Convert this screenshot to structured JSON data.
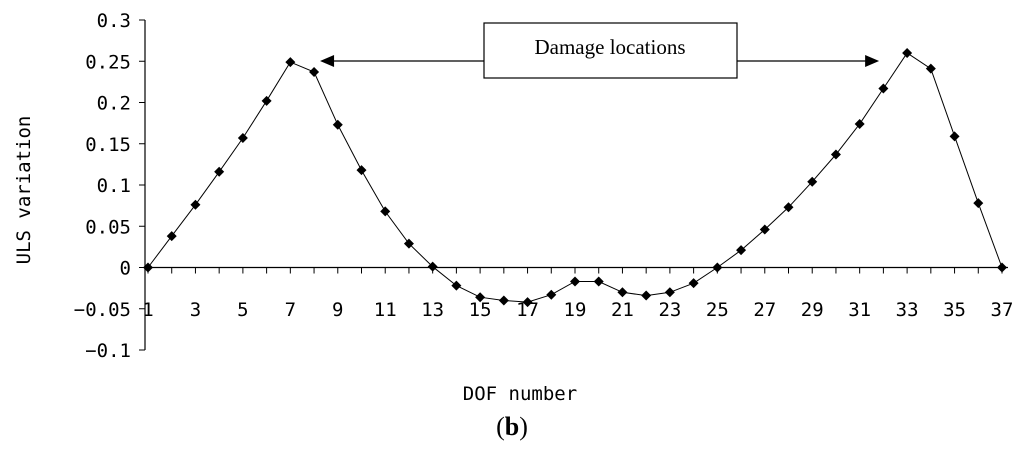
{
  "chart_data": {
    "type": "line",
    "xlabel": "DOF number",
    "ylabel": "ULS variation",
    "ylim": [
      -0.1,
      0.3
    ],
    "xlim": [
      1,
      37
    ],
    "y_ticks": [
      "0.3",
      "0.25",
      "0.2",
      "0.15",
      "0.1",
      "0.05",
      "0",
      "−0.05",
      "−0.1"
    ],
    "y_tick_values": [
      0.3,
      0.25,
      0.2,
      0.15,
      0.1,
      0.05,
      0,
      -0.05,
      -0.1
    ],
    "x_tick_labels": [
      "1",
      "3",
      "5",
      "7",
      "9",
      "11",
      "13",
      "15",
      "17",
      "19",
      "21",
      "23",
      "25",
      "27",
      "29",
      "31",
      "33",
      "35",
      "37"
    ],
    "x_tick_values": [
      1,
      3,
      5,
      7,
      9,
      11,
      13,
      15,
      17,
      19,
      21,
      23,
      25,
      27,
      29,
      31,
      33,
      35,
      37
    ],
    "grid": false,
    "marker": "diamond",
    "series": [
      {
        "x": [
          1,
          2,
          3,
          4,
          5,
          6,
          7,
          8,
          9,
          10,
          11,
          12,
          13,
          14,
          15,
          16,
          17,
          18,
          19,
          20,
          21,
          22,
          23,
          24,
          25,
          26,
          27,
          28,
          29,
          30,
          31,
          32,
          33,
          34,
          35,
          36,
          37
        ],
        "values": [
          0,
          0.038,
          0.076,
          0.116,
          0.157,
          0.202,
          0.249,
          0.237,
          0.173,
          0.118,
          0.068,
          0.029,
          0.001,
          -0.022,
          -0.036,
          -0.04,
          -0.042,
          -0.033,
          -0.017,
          -0.017,
          -0.03,
          -0.034,
          -0.03,
          -0.019,
          0.0,
          0.021,
          0.046,
          0.073,
          0.104,
          0.137,
          0.174,
          0.217,
          0.26,
          0.241,
          0.159,
          0.078,
          0
        ]
      }
    ],
    "annotation": {
      "text": "Damage locations",
      "arrow_left_target_x": 8,
      "arrow_right_target_x": 33,
      "arrow_y": 0.25
    }
  },
  "panel_label": "(b)",
  "panel_label_letter": "b"
}
